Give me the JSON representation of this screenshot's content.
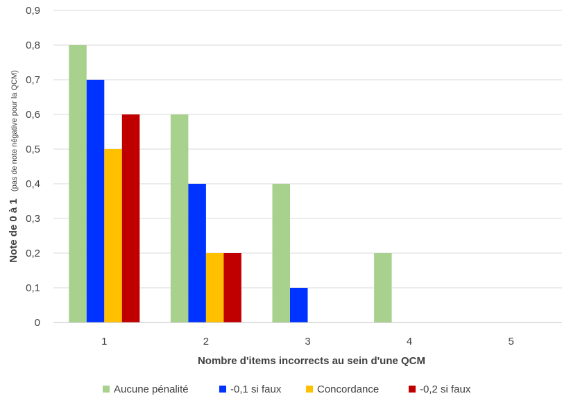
{
  "chart_data": {
    "type": "bar",
    "categories": [
      "1",
      "2",
      "3",
      "4",
      "5"
    ],
    "series": [
      {
        "name": "Aucune pénalité",
        "color": "#a9d18e",
        "values": [
          0.8,
          0.6,
          0.4,
          0.2,
          0
        ]
      },
      {
        "name": "-0,1 si faux",
        "color": "#0033ff",
        "values": [
          0.7,
          0.4,
          0.1,
          0,
          0
        ]
      },
      {
        "name": "Concordance",
        "color": "#ffc000",
        "values": [
          0.5,
          0.2,
          0,
          0,
          0
        ]
      },
      {
        "name": "-0,2 si faux",
        "color": "#c00000",
        "values": [
          0.6,
          0.2,
          0,
          0,
          0
        ]
      }
    ],
    "xlabel": "Nombre d'items incorrects au sein d'une QCM",
    "ylabel_main": "Note de 0 à  1",
    "ylabel_sub": "(pas de note négative pour la QCM)",
    "ylim": [
      0,
      0.9
    ],
    "yticks": [
      "0",
      "0,1",
      "0,2",
      "0,3",
      "0,4",
      "0,5",
      "0,6",
      "0,7",
      "0,8",
      "0,9"
    ],
    "grid": true,
    "legend_position": "bottom"
  }
}
